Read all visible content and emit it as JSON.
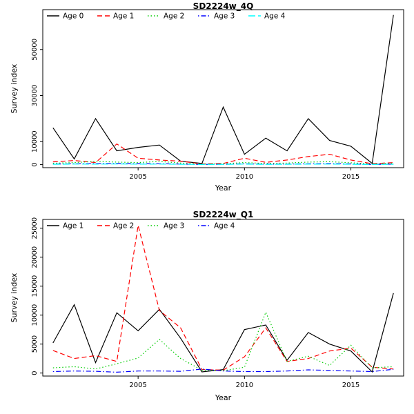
{
  "accent_colors": {
    "black": "#000000",
    "red": "#FF0000",
    "green": "#00CD00",
    "blue": "#0000FF",
    "cyan": "#00FFFF"
  },
  "chart_data": [
    {
      "type": "line",
      "title": "SD2224w_4Q",
      "xlabel": "Year",
      "ylabel": "Survey index",
      "x": [
        2001,
        2002,
        2003,
        2004,
        2005,
        2006,
        2007,
        2008,
        2009,
        2010,
        2011,
        2012,
        2013,
        2014,
        2015,
        2016,
        2017
      ],
      "xticks": [
        2005,
        2010,
        2015
      ],
      "yticks": [
        0,
        10000,
        30000,
        50000
      ],
      "ylim": [
        0,
        66000
      ],
      "grid": false,
      "legend_position": "top-left-horizontal",
      "series": [
        {
          "name": "Age 0",
          "color": "#000000",
          "linetype": "solid",
          "values": [
            16000,
            2500,
            20000,
            6000,
            7500,
            8500,
            1500,
            500,
            25000,
            4500,
            11500,
            6000,
            20000,
            10500,
            8000,
            500,
            65000
          ]
        },
        {
          "name": "Age 1",
          "color": "#FF0000",
          "linetype": "dashed",
          "values": [
            1200,
            1800,
            900,
            9000,
            2800,
            2000,
            1500,
            300,
            500,
            2800,
            1000,
            2000,
            3500,
            4500,
            2000,
            400,
            900
          ]
        },
        {
          "name": "Age 2",
          "color": "#00CD00",
          "linetype": "dotted",
          "values": [
            600,
            900,
            1400,
            1100,
            900,
            1400,
            700,
            200,
            400,
            900,
            500,
            700,
            1100,
            1300,
            800,
            300,
            600
          ]
        },
        {
          "name": "Age 3",
          "color": "#0000FF",
          "linetype": "dashdot",
          "values": [
            250,
            350,
            450,
            500,
            350,
            400,
            250,
            100,
            150,
            350,
            200,
            250,
            350,
            450,
            300,
            100,
            250
          ]
        },
        {
          "name": "Age 4",
          "color": "#00FFFF",
          "linetype": "longdash",
          "values": [
            150,
            250,
            200,
            300,
            200,
            250,
            150,
            50,
            100,
            250,
            100,
            150,
            200,
            250,
            150,
            50,
            150
          ]
        }
      ]
    },
    {
      "type": "line",
      "title": "SD2224w_Q1",
      "xlabel": "Year",
      "ylabel": "Survey index",
      "x": [
        2001,
        2002,
        2003,
        2004,
        2005,
        2006,
        2007,
        2008,
        2009,
        2010,
        2011,
        2012,
        2013,
        2014,
        2015,
        2016,
        2017
      ],
      "xticks": [
        2005,
        2010,
        2015
      ],
      "yticks": [
        0,
        5000,
        10000,
        15000,
        20000,
        25000
      ],
      "ylim": [
        0,
        26000
      ],
      "grid": false,
      "legend_position": "top-left-horizontal",
      "series": [
        {
          "name": "Age 1",
          "color": "#000000",
          "linetype": "solid",
          "values": [
            5200,
            11800,
            1800,
            10400,
            7300,
            11000,
            6000,
            200,
            600,
            7500,
            8300,
            2200,
            7000,
            5000,
            3800,
            200,
            13800
          ]
        },
        {
          "name": "Age 2",
          "color": "#FF0000",
          "linetype": "dashed",
          "values": [
            3900,
            2500,
            3000,
            2000,
            25500,
            10800,
            7800,
            600,
            500,
            2800,
            7800,
            2000,
            2500,
            3800,
            4300,
            1000,
            700
          ]
        },
        {
          "name": "Age 3",
          "color": "#00CD00",
          "linetype": "dotted",
          "values": [
            900,
            1100,
            700,
            1600,
            2600,
            5800,
            2500,
            500,
            400,
            1000,
            10500,
            2000,
            2900,
            1300,
            4800,
            900,
            1100
          ]
        },
        {
          "name": "Age 4",
          "color": "#0000FF",
          "linetype": "dashdot",
          "values": [
            250,
            350,
            300,
            150,
            350,
            350,
            300,
            700,
            350,
            250,
            250,
            350,
            550,
            450,
            350,
            250,
            650
          ]
        }
      ]
    }
  ]
}
